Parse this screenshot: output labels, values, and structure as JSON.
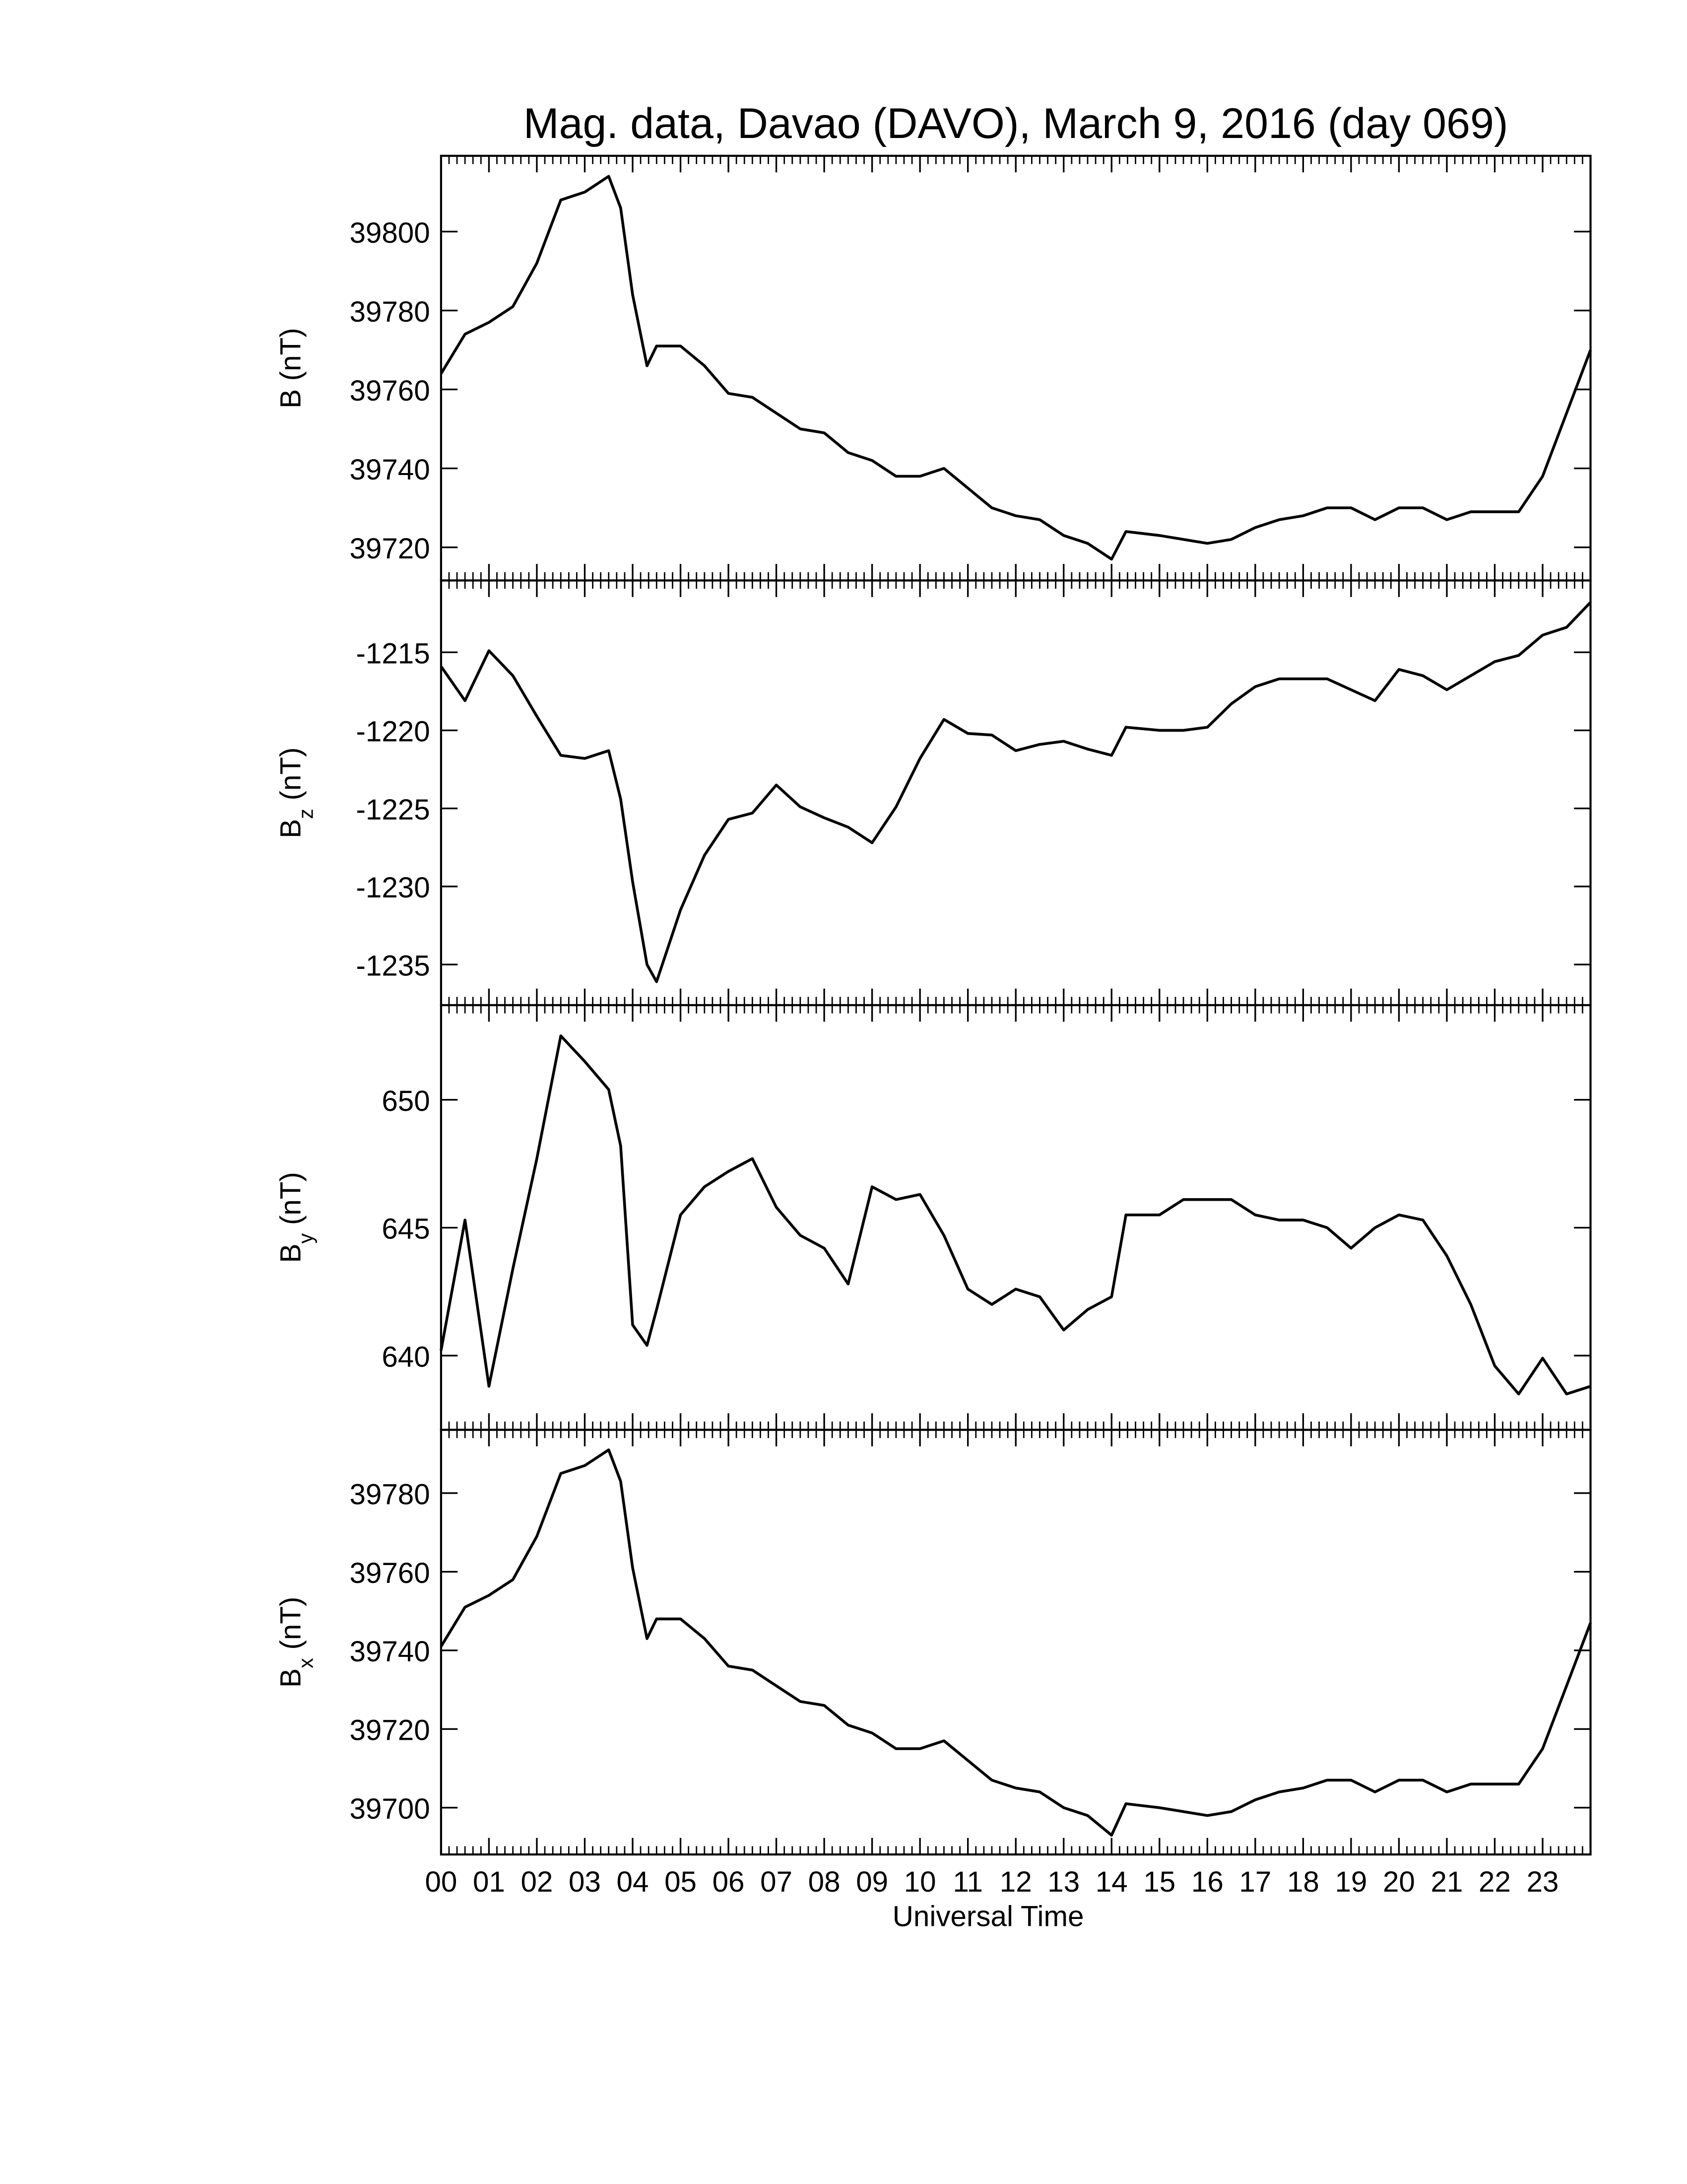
{
  "chart_data": [
    {
      "type": "line",
      "title": "Mag. data, Davao (DAVO), March 9, 2016 (day 069)",
      "ylabel_symbol": "B",
      "ylabel_unit": "(nT)",
      "color": "#000000",
      "x": [
        0,
        0.5,
        1,
        1.5,
        2,
        2.5,
        3,
        3.5,
        3.75,
        4,
        4.3,
        4.5,
        5,
        5.5,
        6,
        6.5,
        7,
        7.5,
        8,
        8.5,
        9,
        9.5,
        10,
        10.5,
        11,
        11.5,
        12,
        12.5,
        13,
        13.5,
        14,
        14.3,
        15,
        15.5,
        16,
        16.5,
        17,
        17.5,
        18,
        18.5,
        19,
        19.5,
        20,
        20.5,
        21,
        21.5,
        22,
        22.5,
        23,
        23.5,
        24
      ],
      "values": [
        39764,
        39774,
        39777,
        39781,
        39792,
        39808,
        39810,
        39814,
        39806,
        39784,
        39766,
        39771,
        39771,
        39766,
        39759,
        39758,
        39754,
        39750,
        39749,
        39744,
        39742,
        39738,
        39738,
        39740,
        39735,
        39730,
        39728,
        39727,
        39723,
        39721,
        39717,
        39724,
        39723,
        39722,
        39721,
        39722,
        39725,
        39727,
        39728,
        39730,
        39730,
        39727,
        39730,
        39730,
        39727,
        39729,
        39729,
        39729,
        39738,
        39754,
        39770
      ],
      "xlim": [
        0,
        24
      ],
      "xticks": [
        0,
        1,
        2,
        3,
        4,
        5,
        6,
        7,
        8,
        9,
        10,
        11,
        12,
        13,
        14,
        15,
        16,
        17,
        18,
        19,
        20,
        21,
        22,
        23,
        24
      ],
      "x_minor_ticks": 6,
      "ylim": [
        39711.6,
        39819.2
      ],
      "yticks": [
        39720,
        39740,
        39760,
        39780,
        39800
      ]
    },
    {
      "type": "line",
      "ylabel_symbol": "B",
      "ylabel_subscript": "z",
      "ylabel_unit": "(nT)",
      "color": "#000000",
      "x": [
        0,
        0.5,
        1,
        1.5,
        2,
        2.5,
        3,
        3.5,
        3.75,
        4,
        4.3,
        4.5,
        5,
        5.5,
        6,
        6.5,
        7,
        7.5,
        8,
        8.5,
        9,
        9.5,
        10,
        10.5,
        11,
        11.5,
        12,
        12.5,
        13,
        13.5,
        14,
        14.3,
        15,
        15.5,
        16,
        16.5,
        17,
        17.5,
        18,
        18.5,
        19,
        19.5,
        20,
        20.5,
        21,
        21.5,
        22,
        22.5,
        23,
        23.5,
        24
      ],
      "values": [
        -1215.9,
        -1218.1,
        -1214.9,
        -1216.5,
        -1219.1,
        -1221.6,
        -1221.8,
        -1221.3,
        -1224.4,
        -1229.7,
        -1235,
        -1236.1,
        -1231.5,
        -1228,
        -1225.7,
        -1225.3,
        -1223.5,
        -1224.9,
        -1225.6,
        -1226.2,
        -1227.2,
        -1224.9,
        -1221.8,
        -1219.3,
        -1220.2,
        -1220.3,
        -1221.3,
        -1220.9,
        -1220.7,
        -1221.2,
        -1221.6,
        -1219.8,
        -1220,
        -1220,
        -1219.8,
        -1218.3,
        -1217.2,
        -1216.7,
        -1216.7,
        -1216.7,
        -1217.4,
        -1218.1,
        -1216.1,
        -1216.5,
        -1217.4,
        -1216.5,
        -1215.6,
        -1215.2,
        -1213.9,
        -1213.4,
        -1211.8
      ],
      "xlim": [
        0,
        24
      ],
      "xticks": [
        0,
        1,
        2,
        3,
        4,
        5,
        6,
        7,
        8,
        9,
        10,
        11,
        12,
        13,
        14,
        15,
        16,
        17,
        18,
        19,
        20,
        21,
        22,
        23,
        24
      ],
      "x_minor_ticks": 6,
      "ylim": [
        -1237.6,
        -1210.4
      ],
      "yticks": [
        -1235,
        -1230,
        -1225,
        -1220,
        -1215
      ]
    },
    {
      "type": "line",
      "ylabel_symbol": "B",
      "ylabel_subscript": "y",
      "ylabel_unit": "(nT)",
      "color": "#000000",
      "x": [
        0,
        0.5,
        1,
        1.5,
        2,
        2.5,
        3,
        3.5,
        3.75,
        4,
        4.3,
        4.5,
        5,
        5.5,
        6,
        6.5,
        7,
        7.5,
        8,
        8.5,
        9,
        9.5,
        10,
        10.5,
        11,
        11.5,
        12,
        12.5,
        13,
        13.5,
        14,
        14.3,
        15,
        15.5,
        16,
        16.5,
        17,
        17.5,
        18,
        18.5,
        19,
        19.5,
        20,
        20.5,
        21,
        21.5,
        22,
        22.5,
        23,
        23.5,
        24
      ],
      "values": [
        640.2,
        645.3,
        638.8,
        643.4,
        647.7,
        652.5,
        651.5,
        650.4,
        648.2,
        641.2,
        640.4,
        641.8,
        645.5,
        646.6,
        647.2,
        647.7,
        645.8,
        644.7,
        644.2,
        642.8,
        646.6,
        646.1,
        646.3,
        644.7,
        642.6,
        642,
        642.6,
        642.3,
        641,
        641.8,
        642.3,
        645.5,
        645.5,
        646.1,
        646.1,
        646.1,
        645.5,
        645.3,
        645.3,
        645,
        644.2,
        645,
        645.5,
        645.3,
        643.9,
        642,
        639.6,
        638.5,
        639.9,
        638.5,
        638.8
      ],
      "xlim": [
        0,
        24
      ],
      "xticks": [
        0,
        1,
        2,
        3,
        4,
        5,
        6,
        7,
        8,
        9,
        10,
        11,
        12,
        13,
        14,
        15,
        16,
        17,
        18,
        19,
        20,
        21,
        22,
        23,
        24
      ],
      "x_minor_ticks": 6,
      "ylim": [
        637.1,
        653.7
      ],
      "yticks": [
        640,
        645,
        650
      ]
    },
    {
      "type": "line",
      "ylabel_symbol": "B",
      "ylabel_subscript": "x",
      "ylabel_unit": "(nT)",
      "color": "#000000",
      "xlabel": "Universal Time",
      "x": [
        0,
        0.5,
        1,
        1.5,
        2,
        2.5,
        3,
        3.5,
        3.75,
        4,
        4.3,
        4.5,
        5,
        5.5,
        6,
        6.5,
        7,
        7.5,
        8,
        8.5,
        9,
        9.5,
        10,
        10.5,
        11,
        11.5,
        12,
        12.5,
        13,
        13.5,
        14,
        14.3,
        15,
        15.5,
        16,
        16.5,
        17,
        17.5,
        18,
        18.5,
        19,
        19.5,
        20,
        20.5,
        21,
        21.5,
        22,
        22.5,
        23,
        23.5,
        24
      ],
      "values": [
        39741,
        39751,
        39754,
        39758,
        39769,
        39785,
        39787,
        39791,
        39783,
        39761,
        39743,
        39748,
        39748,
        39743,
        39736,
        39735,
        39731,
        39727,
        39726,
        39721,
        39719,
        39715,
        39715,
        39717,
        39712,
        39707,
        39705,
        39704,
        39700,
        39698,
        39693,
        39701,
        39700,
        39699,
        39698,
        39699,
        39702,
        39704,
        39705,
        39707,
        39707,
        39704,
        39707,
        39707,
        39704,
        39706,
        39706,
        39706,
        39715,
        39731,
        39747
      ],
      "xlim": [
        0,
        24
      ],
      "xticks": [
        {
          "value": 0,
          "label": "00"
        },
        {
          "value": 1,
          "label": "01"
        },
        {
          "value": 2,
          "label": "02"
        },
        {
          "value": 3,
          "label": "03"
        },
        {
          "value": 4,
          "label": "04"
        },
        {
          "value": 5,
          "label": "05"
        },
        {
          "value": 6,
          "label": "06"
        },
        {
          "value": 7,
          "label": "07"
        },
        {
          "value": 8,
          "label": "08"
        },
        {
          "value": 9,
          "label": "09"
        },
        {
          "value": 10,
          "label": "10"
        },
        {
          "value": 11,
          "label": "11"
        },
        {
          "value": 12,
          "label": "12"
        },
        {
          "value": 13,
          "label": "13"
        },
        {
          "value": 14,
          "label": "14"
        },
        {
          "value": 15,
          "label": "15"
        },
        {
          "value": 16,
          "label": "16"
        },
        {
          "value": 17,
          "label": "17"
        },
        {
          "value": 18,
          "label": "18"
        },
        {
          "value": 19,
          "label": "19"
        },
        {
          "value": 20,
          "label": "20"
        },
        {
          "value": 21,
          "label": "21"
        },
        {
          "value": 22,
          "label": "22"
        },
        {
          "value": 23,
          "label": "23"
        }
      ],
      "x_minor_ticks": 6,
      "ylim": [
        39688.1,
        39796.1
      ],
      "yticks": [
        39700,
        39720,
        39740,
        39760,
        39780
      ]
    }
  ]
}
